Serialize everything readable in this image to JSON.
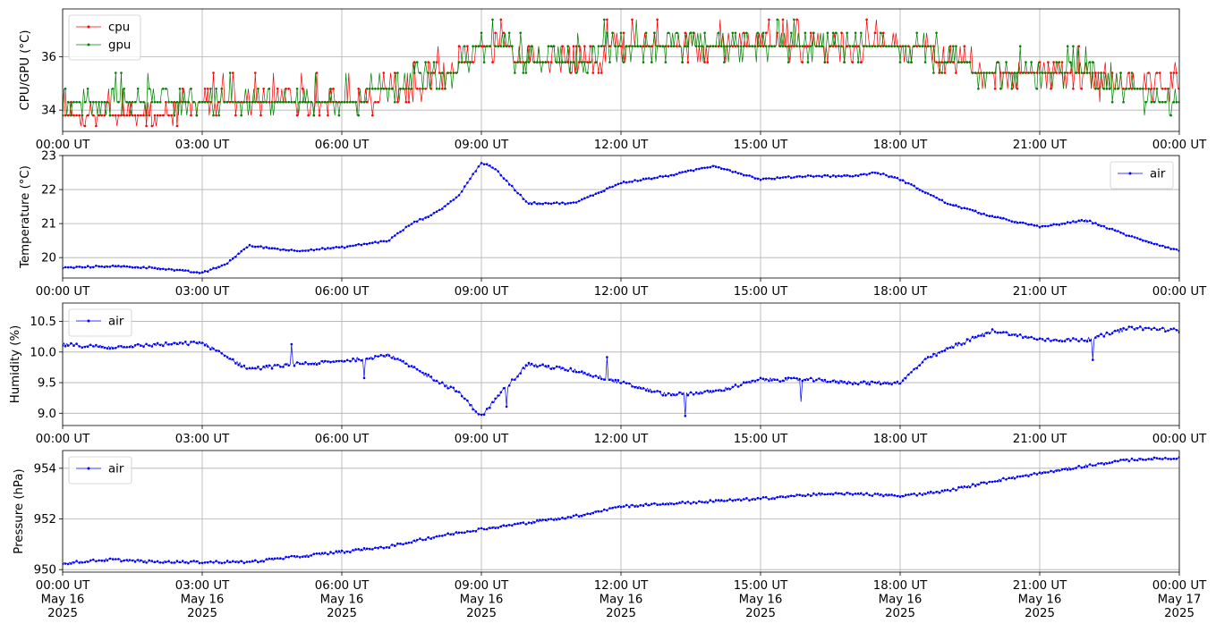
{
  "chart_data": [
    {
      "type": "line",
      "ylabel": "CPU/GPU (°C)",
      "ylim": [
        33.2,
        37.8
      ],
      "yticks": [
        34,
        36
      ],
      "xticks": [
        "00:00 UT",
        "03:00 UT",
        "06:00 UT",
        "09:00 UT",
        "12:00 UT",
        "15:00 UT",
        "18:00 UT",
        "21:00 UT",
        "00:00 UT"
      ],
      "grid": true,
      "legend": "top-left",
      "series": [
        {
          "name": "cpu",
          "color": "#ff0000",
          "x_hours": [
            0,
            1,
            2,
            3,
            4,
            5,
            6,
            7,
            8,
            8.5,
            9,
            9.5,
            10,
            11,
            12,
            13,
            14,
            15,
            16,
            17,
            18,
            18.5,
            19,
            19.5,
            20,
            21,
            22,
            22.5,
            23,
            24
          ],
          "values": [
            33.9,
            33.8,
            33.9,
            34.3,
            34.3,
            34.3,
            34.3,
            34.6,
            35.2,
            35.6,
            36.4,
            36.4,
            35.6,
            35.6,
            36.4,
            36.4,
            36.4,
            36.4,
            36.4,
            36.4,
            36.4,
            36.4,
            35.6,
            35.6,
            35.2,
            35.2,
            35.2,
            34.6,
            34.6,
            34.6
          ]
        },
        {
          "name": "gpu",
          "color": "#008000",
          "x_hours": [
            0,
            1,
            2,
            3,
            4,
            5,
            6,
            7,
            8,
            8.5,
            9,
            9.5,
            10,
            11,
            12,
            13,
            14,
            15,
            16,
            17,
            18,
            18.5,
            19,
            19.5,
            20,
            21,
            22,
            22.5,
            23,
            24
          ],
          "values": [
            34.3,
            34.3,
            34.3,
            34.3,
            34.3,
            34.3,
            34.3,
            34.8,
            35.4,
            35.6,
            36.4,
            36.4,
            35.6,
            35.8,
            36.4,
            36.4,
            36.4,
            36.4,
            36.4,
            36.4,
            36.4,
            36.4,
            35.6,
            35.6,
            35.4,
            35.4,
            35.4,
            34.6,
            34.6,
            34.3
          ]
        }
      ]
    },
    {
      "type": "line",
      "ylabel": "Temperature (°C)",
      "ylim": [
        19.4,
        23.0
      ],
      "yticks": [
        20,
        21,
        22,
        23
      ],
      "xticks": [
        "00:00 UT",
        "03:00 UT",
        "06:00 UT",
        "09:00 UT",
        "12:00 UT",
        "15:00 UT",
        "18:00 UT",
        "21:00 UT",
        "00:00 UT"
      ],
      "grid": true,
      "legend": "top-right",
      "series": [
        {
          "name": "air",
          "color": "#0000ff",
          "x_hours": [
            0,
            1,
            2,
            2.5,
            3,
            3.5,
            4,
            5,
            6,
            7,
            7.5,
            8,
            8.5,
            9,
            9.3,
            10,
            11,
            12,
            13,
            14,
            15,
            16,
            17,
            17.5,
            18,
            19,
            20,
            21,
            22,
            23,
            24
          ],
          "values": [
            19.7,
            19.75,
            19.7,
            19.62,
            19.55,
            19.8,
            20.35,
            20.2,
            20.3,
            20.5,
            21.0,
            21.3,
            21.8,
            22.8,
            22.6,
            21.6,
            21.6,
            22.2,
            22.4,
            22.7,
            22.3,
            22.4,
            22.4,
            22.5,
            22.3,
            21.6,
            21.2,
            20.9,
            21.1,
            20.6,
            20.2
          ]
        }
      ]
    },
    {
      "type": "line",
      "ylabel": "Humidity (%)",
      "ylim": [
        8.8,
        10.8
      ],
      "yticks": [
        9.0,
        9.5,
        10.0,
        10.5
      ],
      "xticks": [
        "00:00 UT",
        "03:00 UT",
        "06:00 UT",
        "09:00 UT",
        "12:00 UT",
        "15:00 UT",
        "18:00 UT",
        "21:00 UT",
        "00:00 UT"
      ],
      "grid": true,
      "legend": "top-left",
      "series": [
        {
          "name": "air",
          "color": "#0000ff",
          "x_hours": [
            0,
            1,
            2,
            3,
            4,
            5,
            6,
            7,
            8,
            8.5,
            9,
            9.5,
            10,
            11,
            12,
            13,
            14,
            15,
            16,
            17,
            18,
            18.5,
            19,
            20,
            21,
            22,
            23,
            24
          ],
          "values": [
            10.12,
            10.08,
            10.12,
            10.15,
            9.72,
            9.8,
            9.85,
            9.95,
            9.55,
            9.35,
            8.95,
            9.4,
            9.8,
            9.7,
            9.5,
            9.3,
            9.35,
            9.55,
            9.55,
            9.5,
            9.5,
            9.85,
            10.05,
            10.35,
            10.2,
            10.2,
            10.4,
            10.35
          ]
        }
      ]
    },
    {
      "type": "line",
      "ylabel": "Pressure (hPa)",
      "ylim": [
        949.9,
        954.7
      ],
      "yticks": [
        950,
        952,
        954
      ],
      "xticks": [
        "00:00 UT\nMay 16\n2025",
        "03:00 UT\nMay 16\n2025",
        "06:00 UT\nMay 16\n2025",
        "09:00 UT\nMay 16\n2025",
        "12:00 UT\nMay 16\n2025",
        "15:00 UT\nMay 16\n2025",
        "18:00 UT\nMay 16\n2025",
        "21:00 UT\nMay 16\n2025",
        "00:00 UT\nMay 17\n2025"
      ],
      "grid": true,
      "legend": "top-left",
      "series": [
        {
          "name": "air",
          "color": "#0000ff",
          "x_hours": [
            0,
            1,
            2,
            3,
            4,
            5,
            6,
            7,
            8,
            9,
            10,
            11,
            12,
            13,
            14,
            15,
            16,
            17,
            18,
            19,
            20,
            21,
            22,
            23,
            24
          ],
          "values": [
            950.25,
            950.4,
            950.3,
            950.3,
            950.3,
            950.5,
            950.7,
            950.9,
            951.3,
            951.6,
            951.85,
            952.1,
            952.5,
            952.6,
            952.7,
            952.8,
            952.95,
            953.0,
            952.9,
            953.1,
            953.5,
            953.8,
            954.1,
            954.35,
            954.4
          ]
        }
      ]
    }
  ]
}
